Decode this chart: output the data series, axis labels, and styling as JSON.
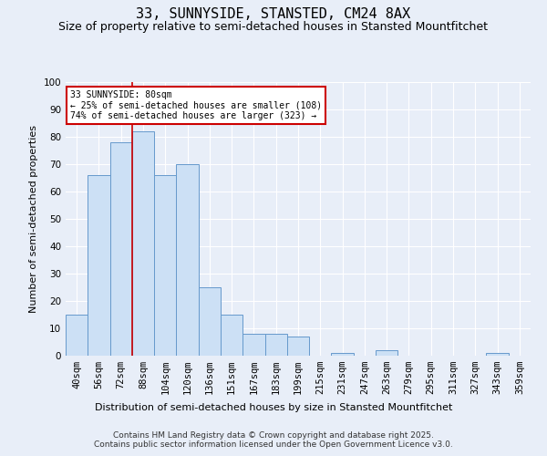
{
  "title": "33, SUNNYSIDE, STANSTED, CM24 8AX",
  "subtitle": "Size of property relative to semi-detached houses in Stansted Mountfitchet",
  "xlabel": "Distribution of semi-detached houses by size in Stansted Mountfitchet",
  "ylabel": "Number of semi-detached properties",
  "categories": [
    "40sqm",
    "56sqm",
    "72sqm",
    "88sqm",
    "104sqm",
    "120sqm",
    "136sqm",
    "151sqm",
    "167sqm",
    "183sqm",
    "199sqm",
    "215sqm",
    "231sqm",
    "247sqm",
    "263sqm",
    "279sqm",
    "295sqm",
    "311sqm",
    "327sqm",
    "343sqm",
    "359sqm"
  ],
  "values": [
    15,
    66,
    78,
    82,
    66,
    70,
    25,
    15,
    8,
    8,
    7,
    0,
    1,
    0,
    2,
    0,
    0,
    0,
    0,
    1,
    0
  ],
  "bar_color": "#cce0f5",
  "bar_edge_color": "#6699cc",
  "vline_x": 2.5,
  "vline_color": "#cc0000",
  "annotation_title": "33 SUNNYSIDE: 80sqm",
  "annotation_line1": "← 25% of semi-detached houses are smaller (108)",
  "annotation_line2": "74% of semi-detached houses are larger (323) →",
  "annotation_box_color": "#ffffff",
  "annotation_box_edge": "#cc0000",
  "ylim": [
    0,
    100
  ],
  "yticks": [
    0,
    10,
    20,
    30,
    40,
    50,
    60,
    70,
    80,
    90,
    100
  ],
  "background_color": "#e8eef8",
  "footer_line1": "Contains HM Land Registry data © Crown copyright and database right 2025.",
  "footer_line2": "Contains public sector information licensed under the Open Government Licence v3.0.",
  "title_fontsize": 11,
  "subtitle_fontsize": 9,
  "axis_label_fontsize": 8,
  "tick_fontsize": 7.5
}
